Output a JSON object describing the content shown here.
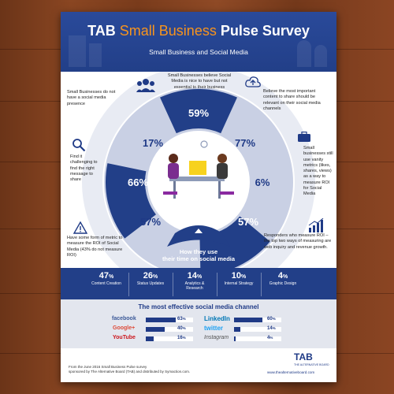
{
  "header": {
    "title_prefix": "TAB",
    "title_accent": "Small Business",
    "title_suffix": "Pulse Survey",
    "subtitle": "Small Business and Social Media"
  },
  "stats": [
    {
      "value": "59%",
      "text": "Small Businesses believe Social Media is nice to have but not essential to their business",
      "icon": "people-group-icon"
    },
    {
      "value": "77%",
      "text": "Believe the most important content to share should be relevant on their social media channels",
      "icon": "cloud-upload-icon"
    },
    {
      "value": "6%",
      "text": "Small businesses still use vanity metrics (likes, shares, views) as a way to measure ROI for Social Media",
      "icon": "briefcase-icon"
    },
    {
      "value": "57%",
      "text": "Responders who measure ROI – the top two ways of measuring are web inquiry and revenue growth.",
      "icon": "bar-growth-icon"
    },
    {
      "value": "57%",
      "text": "Have some form of metric to measure the ROI of Social Media (43% do not measure ROI)",
      "icon": "warning-icon"
    },
    {
      "value": "66%",
      "text": "Find it challenging to find the right message to share",
      "icon": "magnifier-icon"
    },
    {
      "value": "17%",
      "text": "Small Businesses do not have a social media presence",
      "icon": "team-icon"
    }
  ],
  "time_section": {
    "title_line1": "How they use",
    "title_line2": "their time on social media",
    "items": [
      {
        "value": "47",
        "unit": "%",
        "label": "Content Creation"
      },
      {
        "value": "26",
        "unit": "%",
        "label": "Status Updates"
      },
      {
        "value": "14",
        "unit": "%",
        "label": "Analytics & Research"
      },
      {
        "value": "10",
        "unit": "%",
        "label": "Internal Strategy"
      },
      {
        "value": "4",
        "unit": "%",
        "label": "Graphic Design"
      }
    ]
  },
  "channels": {
    "title": "The most effective social media channel",
    "items": [
      {
        "name": "facebook",
        "value": "63",
        "unit": "%",
        "fraction": 0.63,
        "color": "#3b5998"
      },
      {
        "name": "LinkedIn",
        "value": "60",
        "unit": "%",
        "fraction": 0.6,
        "color": "#0077b5"
      },
      {
        "name": "Google+",
        "value": "40",
        "unit": "%",
        "fraction": 0.4,
        "color": "#dd4b39"
      },
      {
        "name": "twitter",
        "value": "14",
        "unit": "%",
        "fraction": 0.14,
        "color": "#1da1f2"
      },
      {
        "name": "YouTube",
        "value": "16",
        "unit": "%",
        "fraction": 0.16,
        "color": "#cc181e"
      },
      {
        "name": "Instagram",
        "value": "4",
        "unit": "%",
        "fraction": 0.04,
        "color": "#555555"
      }
    ]
  },
  "footer": {
    "line1": "From the June 2016 Small Business Pulse survey",
    "line2": "sponsored by The Alternative Board (TAB) and distributed by Symaction.com.",
    "logo": "TAB",
    "logo_sub": "THE ALTERNATIVE BOARD",
    "url": "www.thealternativeboard.com"
  },
  "colors": {
    "brand_blue": "#223f88",
    "light_blue": "#c9d0e4",
    "accent_orange": "#f7941d",
    "wood": "#7a3c1c"
  }
}
